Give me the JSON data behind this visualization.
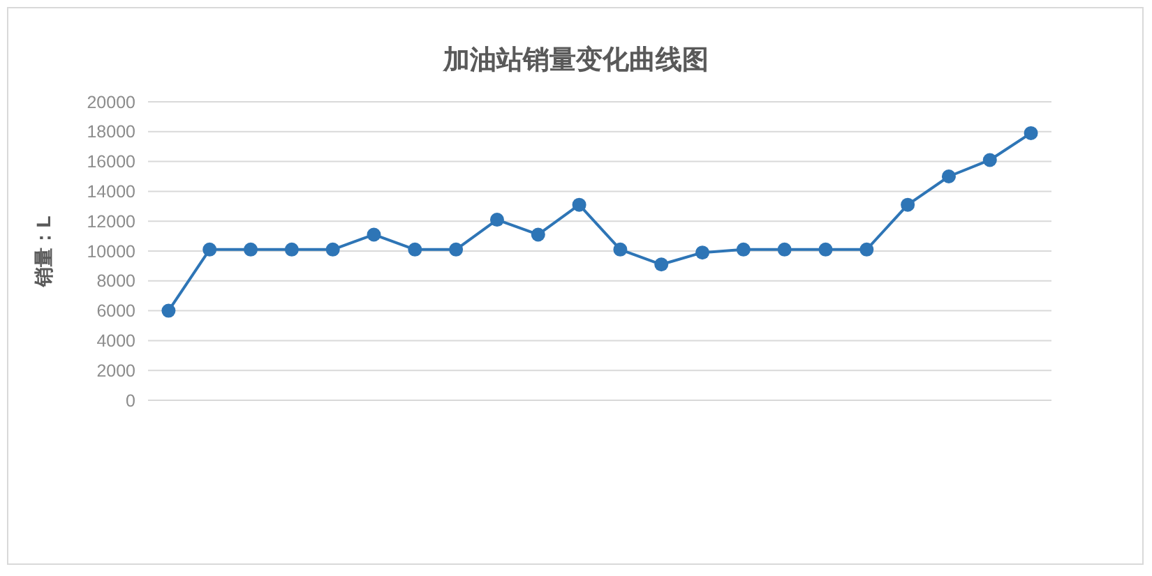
{
  "chart_data": {
    "type": "line",
    "title": "加油站销量变化曲线图",
    "ylabel": "销量：L",
    "categories": [
      null,
      null,
      null,
      null,
      null,
      null,
      null,
      null,
      null,
      null,
      null,
      null,
      null,
      null,
      null,
      null,
      null,
      null,
      null,
      null,
      null,
      null
    ],
    "series": [
      {
        "color": "#2e75b6",
        "values": [
          6000,
          10100,
          10100,
          10100,
          10100,
          11100,
          10100,
          10100,
          12100,
          11100,
          13100,
          10100,
          9100,
          9900,
          10100,
          10100,
          10100,
          10100,
          13100,
          15000,
          16100,
          17900
        ]
      }
    ],
    "ylim": [
      0,
      20000
    ],
    "yticks": [
      0,
      2000,
      4000,
      6000,
      8000,
      10000,
      12000,
      14000,
      16000,
      18000,
      20000
    ],
    "grid": "y",
    "marker": "circle",
    "line_style": "solid"
  }
}
